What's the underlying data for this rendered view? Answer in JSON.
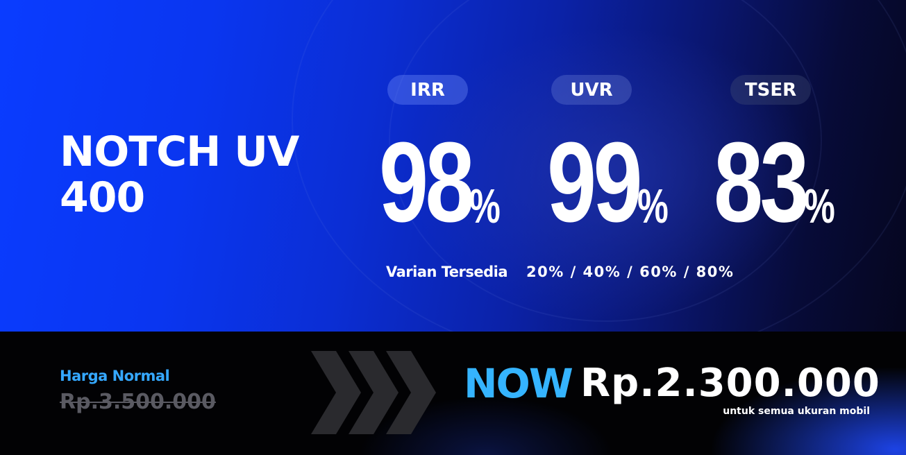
{
  "product": {
    "title_line1": "NOTCH UV",
    "title_line2": "400"
  },
  "stats": [
    {
      "label": "IRR",
      "value": "98",
      "unit": "%"
    },
    {
      "label": "UVR",
      "value": "99",
      "unit": "%"
    },
    {
      "label": "TSER",
      "value": "83",
      "unit": "%"
    }
  ],
  "variants": {
    "label": "Varian Tersedia",
    "values": "20% / 40% / 60% / 80%"
  },
  "pricing": {
    "normal_label": "Harga Normal",
    "normal_price": "Rp.3.500.000",
    "now_label": "NOW",
    "now_price": "Rp.2.300.000",
    "note": "untuk semua ukuran mobil"
  },
  "colors": {
    "brand_blue": "#0a3cff",
    "accent_cyan": "#35b4ff",
    "dark": "#020204",
    "arrow_gray": "#2a2a2e"
  }
}
